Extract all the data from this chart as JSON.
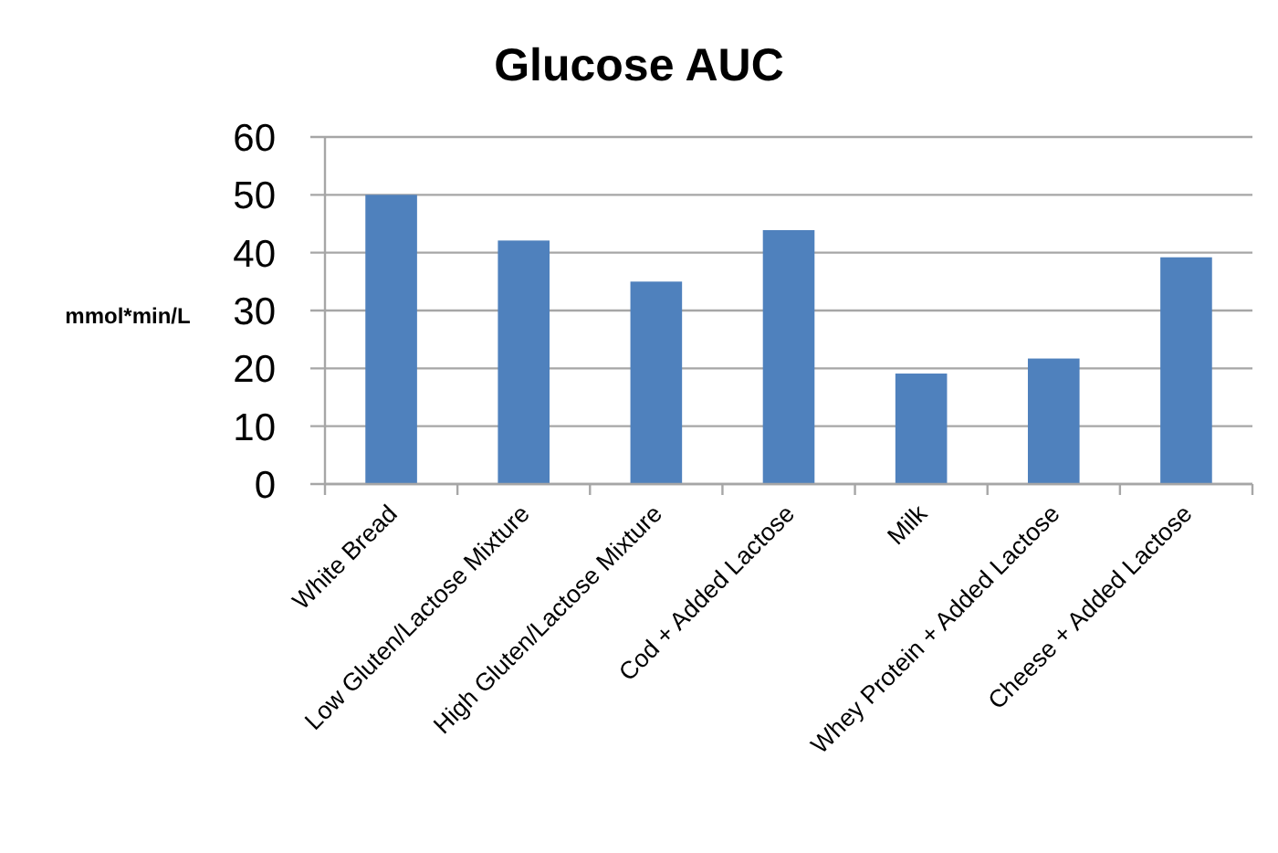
{
  "chart_data": {
    "type": "bar",
    "title": "Glucose AUC",
    "ylabel": "mmol*min/L",
    "categories": [
      "White Bread",
      "Low Gluten/Lactose Mixture",
      "High Gluten/Lactose Mixture",
      "Cod + Added Lactose",
      "Milk",
      "Whey Protein + Added Lactose",
      "Cheese + Added Lactose"
    ],
    "values": [
      50,
      42.1,
      35,
      43.9,
      19.1,
      21.7,
      39.2
    ],
    "color": "#4f81bd",
    "ylim": [
      0,
      60
    ],
    "yticks": [
      0,
      10,
      20,
      30,
      40,
      50,
      60
    ],
    "grid": "y"
  }
}
